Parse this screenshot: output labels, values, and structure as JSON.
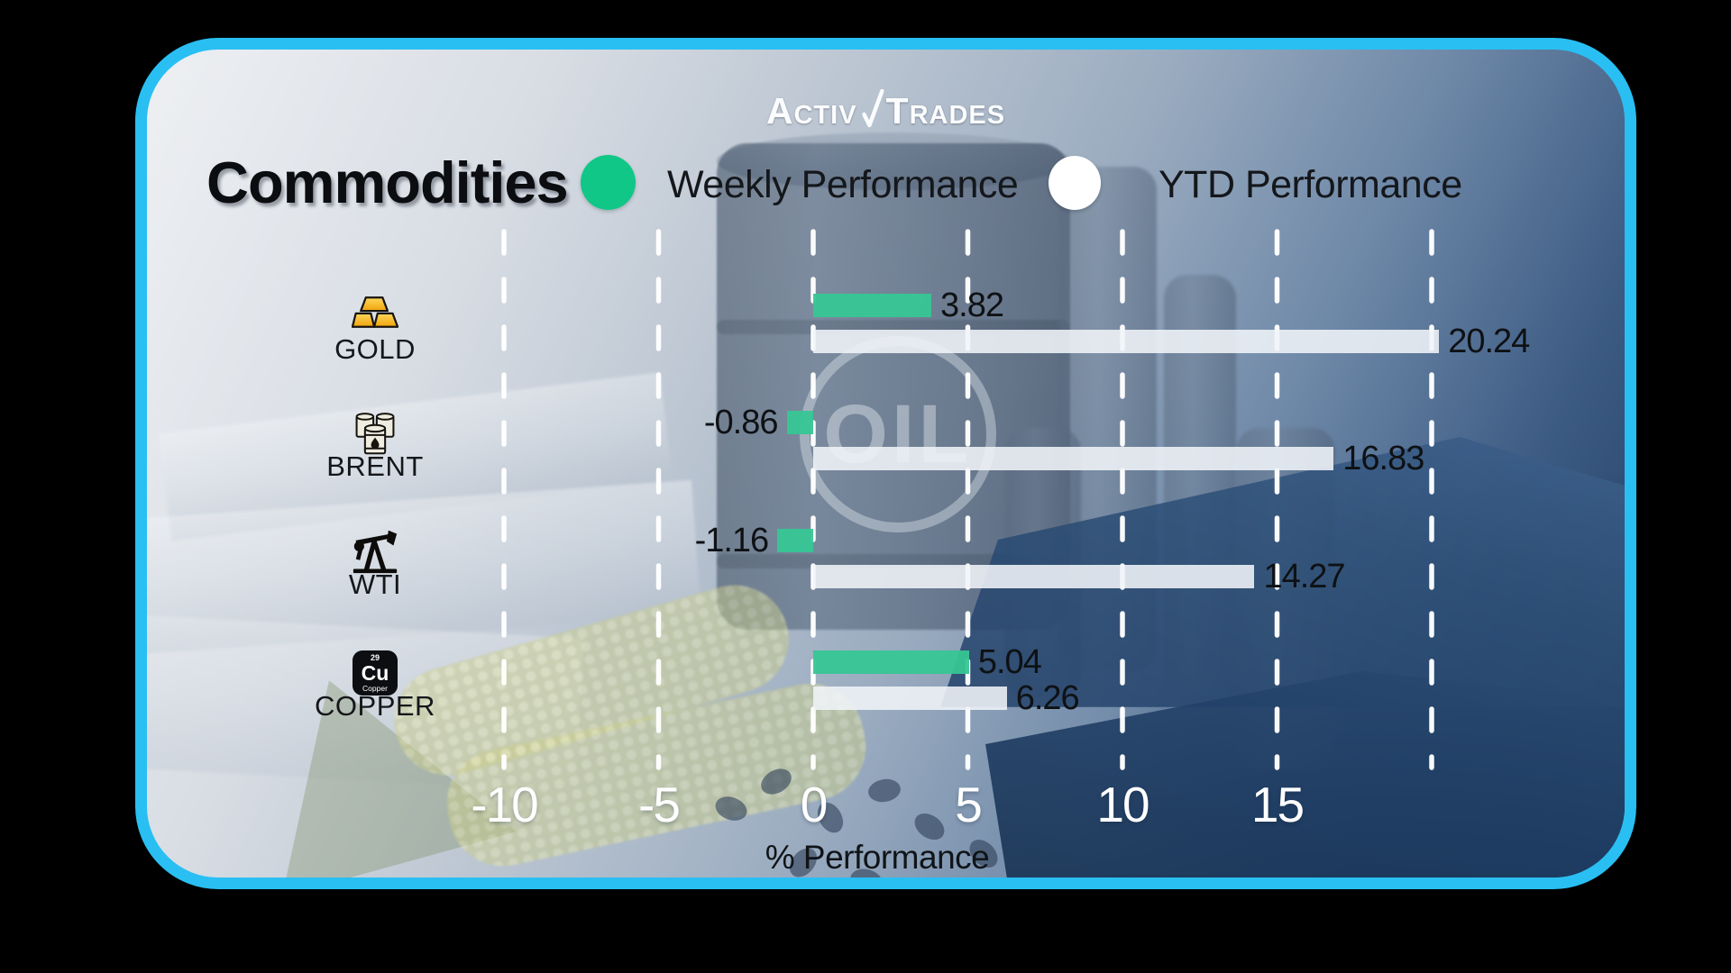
{
  "window": {
    "outer_background": "#000000",
    "card_border_color": "#29BFF2"
  },
  "brand": {
    "name_left": "ACTIV",
    "name_right": "TRADES",
    "mark": "check-slash"
  },
  "header": {
    "title": "Commodities"
  },
  "legend": {
    "weekly": {
      "label": "Weekly Performance",
      "color": "#10C787"
    },
    "ytd": {
      "label": "YTD Performance",
      "color": "#FFFFFF"
    }
  },
  "chart_data": {
    "type": "bar",
    "orientation": "horizontal",
    "title": "Commodities",
    "categories": [
      "GOLD",
      "BRENT",
      "WTI",
      "COPPER"
    ],
    "category_icons": [
      "gold-bars-icon",
      "oil-barrels-icon",
      "oil-pump-icon",
      "copper-element-icon"
    ],
    "series": [
      {
        "name": "Weekly Performance",
        "color": "#37C694",
        "values": [
          3.82,
          -0.86,
          -1.16,
          5.04
        ]
      },
      {
        "name": "YTD Performance",
        "color": "#F0F4F8",
        "values": [
          20.24,
          16.83,
          14.27,
          6.26
        ]
      }
    ],
    "xlabel": "% Performance",
    "x_ticks": [
      -10,
      -5,
      0,
      5,
      10,
      15
    ],
    "grid_lines": [
      -10,
      -5,
      0,
      5,
      10,
      15,
      20
    ],
    "xlim": [
      -13,
      22
    ],
    "grid": "dashed-white-vertical",
    "legend_position": "top",
    "value_label_decimals": 2
  }
}
